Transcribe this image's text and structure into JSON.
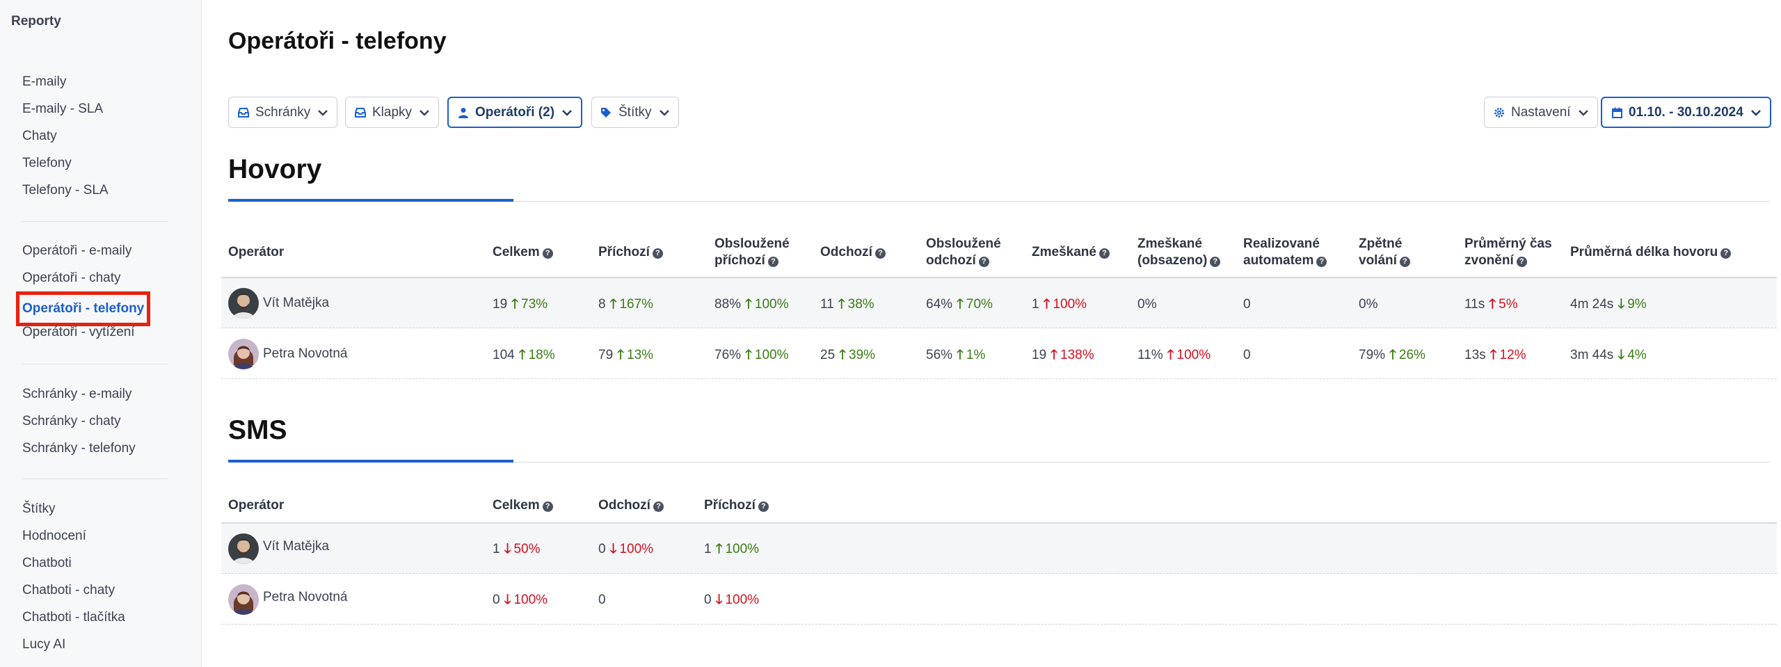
{
  "sidebar": {
    "title": "Reporty",
    "groups": [
      [
        "E-maily",
        "E-maily - SLA",
        "Chaty",
        "Telefony",
        "Telefony - SLA"
      ],
      [
        "Operátoři - e-maily",
        "Operátoři - chaty",
        "Operátoři - telefony",
        "Operátoři - vytížení"
      ],
      [
        "Schránky - e-maily",
        "Schránky - chaty",
        "Schránky - telefony"
      ],
      [
        "Štítky",
        "Hodnocení",
        "Chatboti",
        "Chatboti - chaty",
        "Chatboti - tlačítka",
        "Lucy AI"
      ]
    ],
    "active": "Operátoři - telefony"
  },
  "page_title": "Operátoři - telefony",
  "filters": {
    "schranky": "Schránky",
    "klapky": "Klapky",
    "operatori": "Operátoři (2)",
    "stitky": "Štítky",
    "nastaveni": "Nastavení",
    "date_range": "01.10. - 30.10.2024"
  },
  "hovory": {
    "title": "Hovory",
    "headers": {
      "operator": "Operátor",
      "celkem": "Celkem",
      "prichozi": "Příchozí",
      "obsl_prichozi_1": "Obsloužené",
      "obsl_prichozi_2": "příchozí",
      "odchozi": "Odchozí",
      "obsl_odchozi_1": "Obsloužené",
      "obsl_odchozi_2": "odchozí",
      "zmeskane": "Zmeškané",
      "zmeskane_obs_1": "Zmeškané",
      "zmeskane_obs_2": "(obsazeno)",
      "realiz_1": "Realizované",
      "realiz_2": "automatem",
      "zpetne_1": "Zpětné",
      "zpetne_2": "volání",
      "prum_cas_1": "Průměrný čas",
      "prum_cas_2": "zvonění",
      "prum_delka": "Průměrná délka hovoru"
    },
    "rows": [
      {
        "name": "Vít Matějka",
        "celkem": "19",
        "celkem_d": "73%",
        "prichozi": "8",
        "prichozi_d": "167%",
        "obsl_prichozi": "88%",
        "obsl_prichozi_d": "100%",
        "odchozi": "11",
        "odchozi_d": "38%",
        "obsl_odchozi": "64%",
        "obsl_odchozi_d": "70%",
        "zmeskane": "1",
        "zmeskane_d": "100%",
        "zmeskane_obs": "0%",
        "realiz": "0",
        "zpetne": "0%",
        "prum_cas": "11s",
        "prum_cas_d": "5%",
        "prum_delka": "4m 24s",
        "prum_delka_d": "9%"
      },
      {
        "name": "Petra Novotná",
        "celkem": "104",
        "celkem_d": "18%",
        "prichozi": "79",
        "prichozi_d": "13%",
        "obsl_prichozi": "76%",
        "obsl_prichozi_d": "100%",
        "odchozi": "25",
        "odchozi_d": "39%",
        "obsl_odchozi": "56%",
        "obsl_odchozi_d": "1%",
        "zmeskane": "19",
        "zmeskane_d": "138%",
        "zmeskane_obs": "11%",
        "zmeskane_obs_d": "100%",
        "realiz": "0",
        "zpetne": "79%",
        "zpetne_d": "26%",
        "prum_cas": "13s",
        "prum_cas_d": "12%",
        "prum_delka": "3m 44s",
        "prum_delka_d": "4%"
      }
    ]
  },
  "sms": {
    "title": "SMS",
    "headers": {
      "operator": "Operátor",
      "celkem": "Celkem",
      "odchozi": "Odchozí",
      "prichozi": "Příchozí"
    },
    "rows": [
      {
        "name": "Vít Matějka",
        "celkem": "1",
        "celkem_d": "50%",
        "odchozi": "0",
        "odchozi_d": "100%",
        "prichozi": "1",
        "prichozi_d": "100%"
      },
      {
        "name": "Petra Novotná",
        "celkem": "0",
        "celkem_d": "100%",
        "odchozi": "0",
        "prichozi": "0",
        "prichozi_d": "100%"
      }
    ]
  },
  "colors": {
    "accent": "#1b5fcc",
    "positive": "#3a7d14",
    "negative": "#d3101f",
    "highlight_box": "#e8220f"
  },
  "icons": {
    "up": "arrow-up-icon",
    "down": "arrow-down-icon",
    "help": "question-circle-icon"
  }
}
